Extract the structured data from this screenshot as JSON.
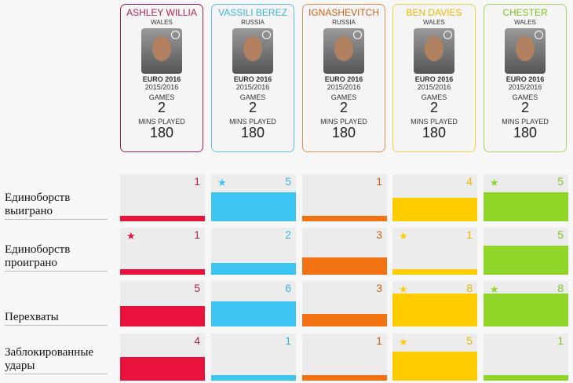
{
  "players": [
    {
      "name": "ASHLEY WILLIA",
      "country": "WALES",
      "event": "EURO 2016",
      "season": "2015/2016",
      "games_label": "GAMES",
      "games": "2",
      "mins_label": "MINS PLAYED",
      "mins": "180",
      "color": "#e8123c",
      "border": "#a8204e",
      "title_color": "#b0235a"
    },
    {
      "name": "VASSILI BEREZ",
      "country": "RUSSIA",
      "event": "EURO 2016",
      "season": "2015/2016",
      "games_label": "GAMES",
      "games": "2",
      "mins_label": "MINS PLAYED",
      "mins": "180",
      "color": "#3cc4f2",
      "border": "#60c0dc",
      "title_color": "#3fb4d8"
    },
    {
      "name": "IGNASHEVITCH",
      "country": "RUSSIA",
      "event": "EURO 2016",
      "season": "2015/2016",
      "games_label": "GAMES",
      "games": "2",
      "mins_label": "MINS PLAYED",
      "mins": "180",
      "color": "#f27212",
      "border": "#e09050",
      "title_color": "#d0601a"
    },
    {
      "name": "BEN DAVIES",
      "country": "WALES",
      "event": "EURO 2016",
      "season": "2015/2016",
      "games_label": "GAMES",
      "games": "2",
      "mins_label": "MINS PLAYED",
      "mins": "180",
      "color": "#ffcc00",
      "border": "#f0d050",
      "title_color": "#e8b800"
    },
    {
      "name": "CHESTER",
      "country": "WALES",
      "event": "EURO 2016",
      "season": "2015/2016",
      "games_label": "GAMES",
      "games": "2",
      "mins_label": "MINS PLAYED",
      "mins": "180",
      "color": "#8fd628",
      "border": "#a0d860",
      "title_color": "#7cc520"
    }
  ],
  "stats": [
    {
      "label_line1": "Единоборств",
      "label_line2": "выиграно",
      "values": [
        1,
        5,
        1,
        4,
        5
      ],
      "stars": [
        false,
        true,
        false,
        false,
        true
      ]
    },
    {
      "label_line1": "Единоборств",
      "label_line2": "проиграно",
      "values": [
        1,
        2,
        3,
        1,
        5
      ],
      "stars": [
        true,
        false,
        false,
        true,
        false
      ]
    },
    {
      "label_line1": "",
      "label_line2": "Перехваты",
      "values": [
        5,
        6,
        3,
        8,
        8
      ],
      "stars": [
        false,
        false,
        false,
        true,
        true
      ]
    },
    {
      "label_line1": "Заблокированные",
      "label_line2": "удары",
      "values": [
        4,
        1,
        1,
        5,
        1
      ],
      "stars": [
        false,
        false,
        false,
        true,
        false
      ]
    }
  ]
}
